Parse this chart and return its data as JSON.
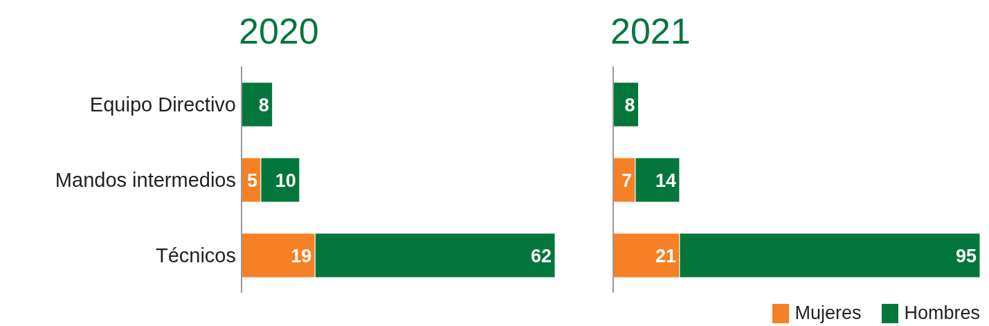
{
  "chart_data": [
    {
      "type": "bar",
      "title": "2020",
      "orientation": "horizontal",
      "stacked": true,
      "data_labels": true,
      "tick_labels": "y",
      "legend": false,
      "xlim": [
        0,
        81
      ],
      "categories": [
        "Equipo Directivo",
        "Mandos intermedios",
        "Técnicos"
      ],
      "series": [
        {
          "color": "#f58025",
          "values": [
            null,
            5,
            19
          ]
        },
        {
          "color": "#03773b",
          "values": [
            8,
            10,
            62
          ]
        }
      ]
    },
    {
      "type": "bar",
      "title": "2021",
      "orientation": "horizontal",
      "stacked": true,
      "data_labels": true,
      "tick_labels": false,
      "legend": "bottom right",
      "xlim": [
        0,
        116
      ],
      "categories": [
        null,
        null,
        null
      ],
      "series": [
        {
          "name": "Mujeres",
          "color": "#f58025",
          "values": [
            null,
            7,
            21
          ]
        },
        {
          "name": "Hombres",
          "color": "#03773b",
          "values": [
            8,
            14,
            95
          ]
        }
      ]
    }
  ]
}
